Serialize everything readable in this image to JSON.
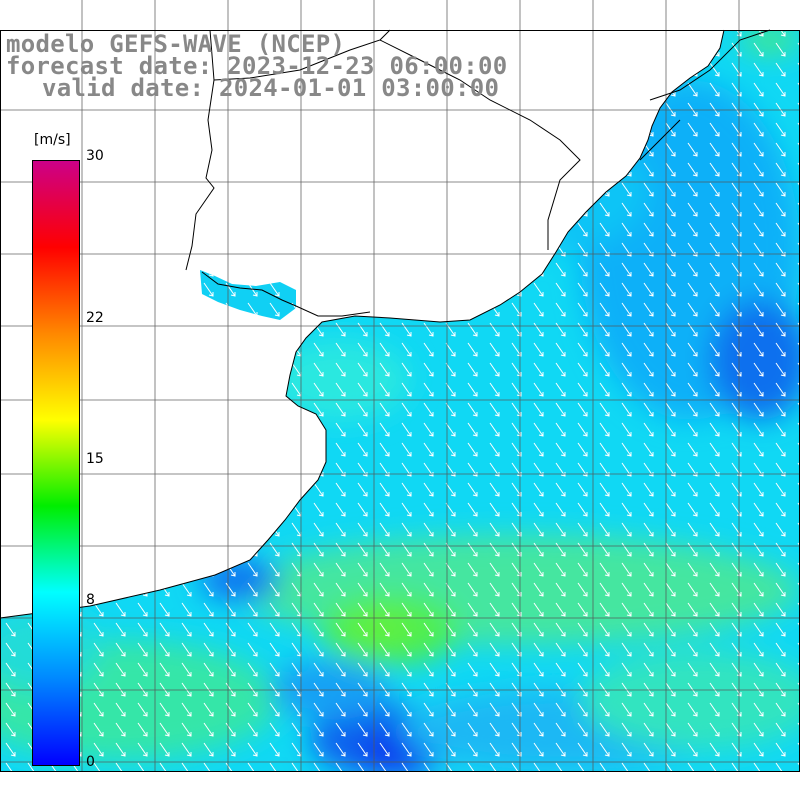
{
  "title": {
    "line1": "modelo GEFS-WAVE (NCEP)",
    "line2": "forecast date: 2023-12-23 06:00:00",
    "line3": "valid date: 2024-01-01 03:00:00"
  },
  "colorbar": {
    "unit": "[m/s]",
    "ticks": [
      {
        "label": "30",
        "value": 30
      },
      {
        "label": "22",
        "value": 22
      },
      {
        "label": "15",
        "value": 15
      },
      {
        "label": "8",
        "value": 8
      },
      {
        "label": "0",
        "value": 0
      }
    ],
    "stops": [
      "#0000ff",
      "#0088ff",
      "#00ffff",
      "#00ee00",
      "#ffff00",
      "#ff8800",
      "#ff0000",
      "#cc0088"
    ]
  },
  "map": {
    "field": "wind speed with direction arrows",
    "land_color": "#ffffff",
    "grid_color": "#555555",
    "arrow_color": "#ffffff"
  }
}
